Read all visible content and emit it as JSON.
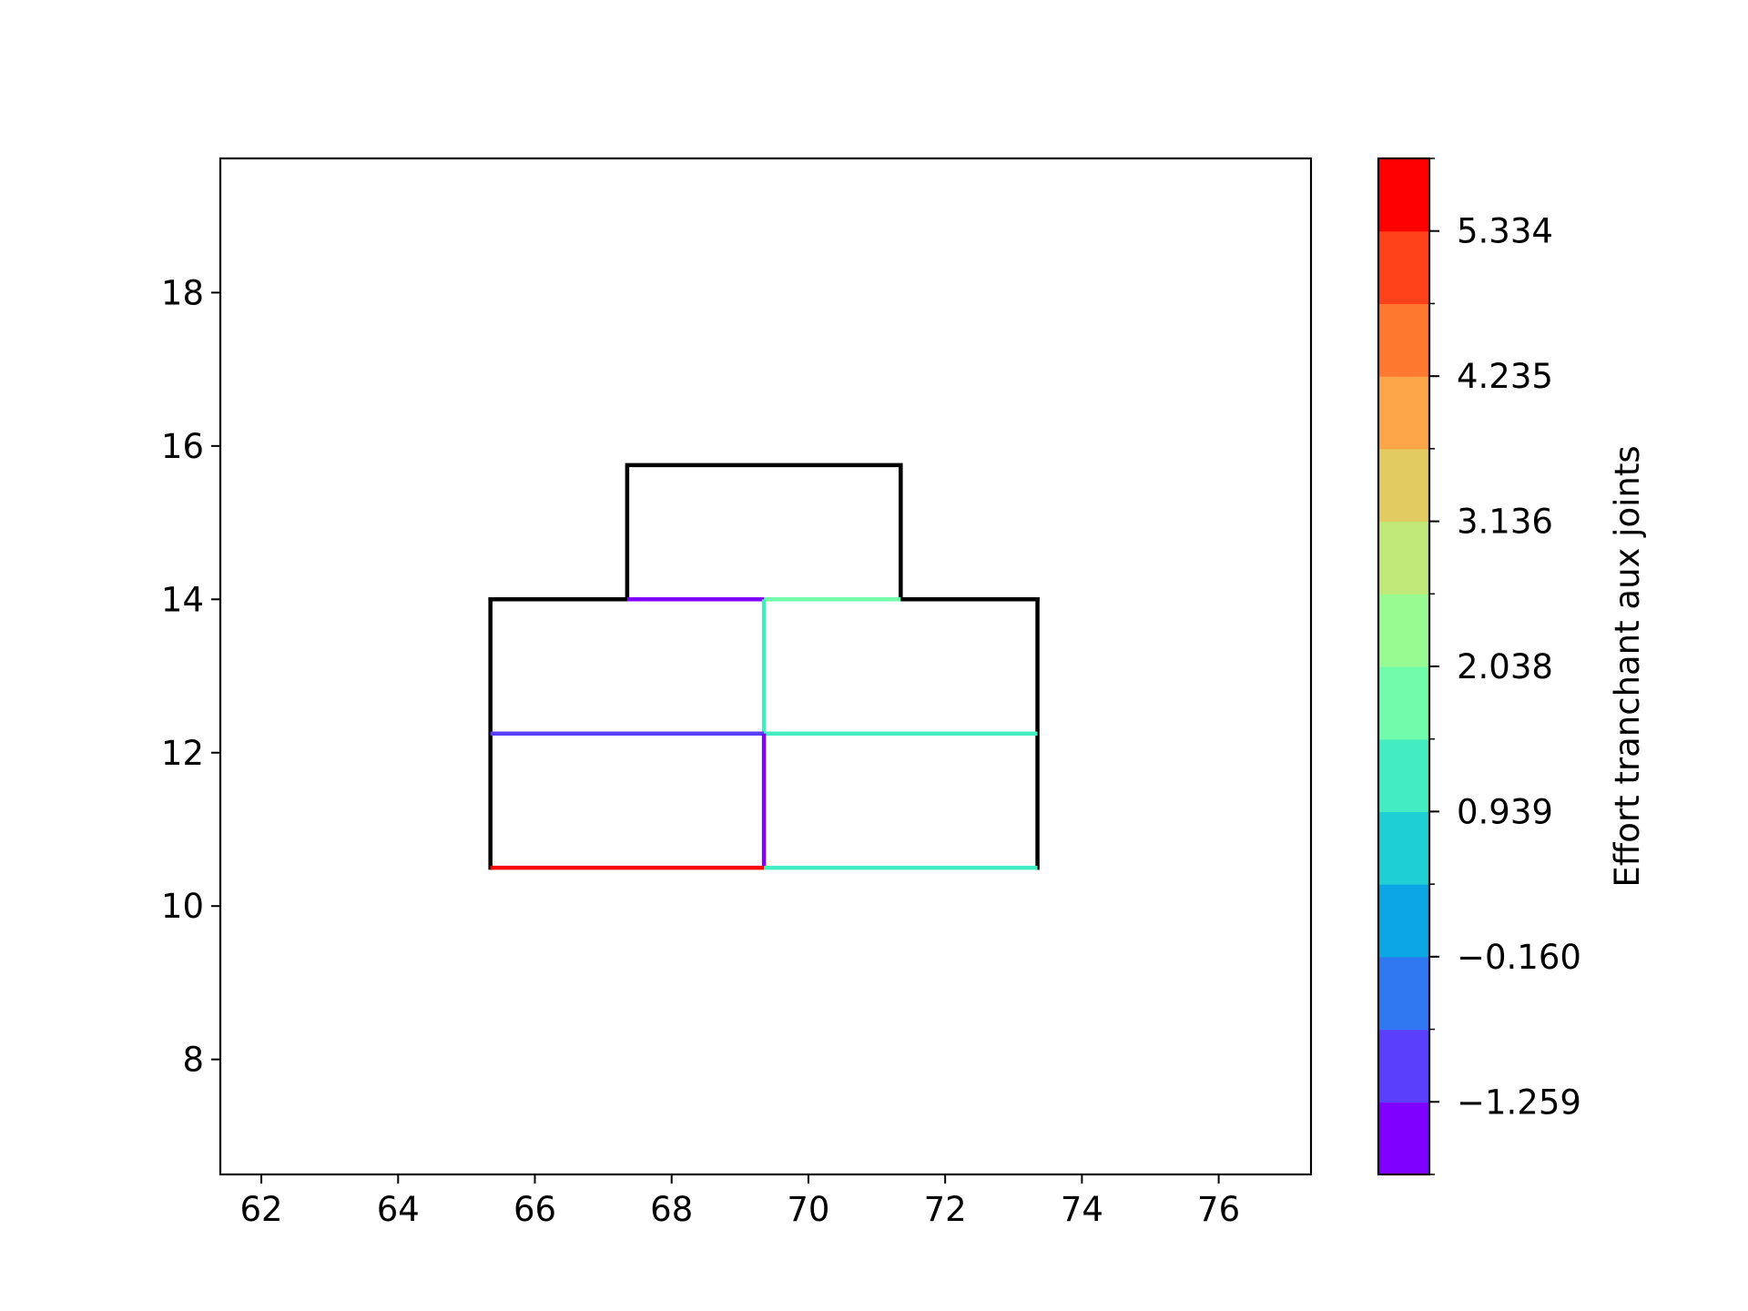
{
  "chart_data": {
    "type": "line",
    "title": "",
    "xlabel": "",
    "ylabel": "",
    "xlim": [
      61.4,
      77.35
    ],
    "ylim": [
      6.5,
      19.75
    ],
    "x_ticks": [
      62,
      64,
      66,
      68,
      70,
      72,
      74,
      76
    ],
    "y_ticks": [
      8,
      10,
      12,
      14,
      16,
      18
    ],
    "grid": false,
    "outline_color": "#000000",
    "outline_segments": [
      {
        "x": [
          67.35,
          67.35,
          71.35,
          71.35
        ],
        "y": [
          14.0,
          15.75,
          15.75,
          14.0
        ]
      },
      {
        "x": [
          65.35,
          65.35,
          73.35,
          73.35
        ],
        "y": [
          10.5,
          14.0,
          14.0,
          10.5
        ]
      },
      {
        "x": [
          65.35,
          67.35
        ],
        "y": [
          14.0,
          14.0
        ]
      },
      {
        "x": [
          71.35,
          73.35
        ],
        "y": [
          14.0,
          14.0
        ]
      }
    ],
    "joints": [
      {
        "x": [
          67.35,
          69.35
        ],
        "y": [
          14.0,
          14.0
        ],
        "value": -1.64
      },
      {
        "x": [
          69.35,
          71.35
        ],
        "y": [
          14.0,
          14.0
        ],
        "value": 1.8
      },
      {
        "x": [
          69.35,
          69.35
        ],
        "y": [
          12.25,
          14.0
        ],
        "value": 1.3
      },
      {
        "x": [
          65.35,
          69.35
        ],
        "y": [
          12.25,
          12.25
        ],
        "value": -1.0
      },
      {
        "x": [
          69.35,
          73.35
        ],
        "y": [
          12.25,
          12.25
        ],
        "value": 1.3
      },
      {
        "x": [
          69.35,
          69.35
        ],
        "y": [
          10.5,
          12.25
        ],
        "value": -1.5
      },
      {
        "x": [
          65.35,
          69.35
        ],
        "y": [
          10.5,
          10.5
        ],
        "value": 5.6
      },
      {
        "x": [
          69.35,
          73.35
        ],
        "y": [
          10.5,
          10.5
        ],
        "value": 1.3
      }
    ],
    "colorbar": {
      "label": "Effort tranchant aux joints",
      "min": -1.8085,
      "max": 5.8835,
      "ticks": [
        -1.259,
        -0.16,
        0.939,
        2.038,
        3.136,
        4.235,
        5.334
      ],
      "tick_labels": [
        "−1.259",
        "−0.160",
        "0.939",
        "2.038",
        "3.136",
        "4.235",
        "5.334"
      ],
      "colors": [
        "#8000ff",
        "#5a40fc",
        "#2f78f2",
        "#0ca6e4",
        "#1ecfd4",
        "#44edc1",
        "#70fcaa",
        "#98fb92",
        "#c0e97a",
        "#e2cc61",
        "#fda649",
        "#fe7830",
        "#ff4219",
        "#ff0000"
      ]
    }
  }
}
